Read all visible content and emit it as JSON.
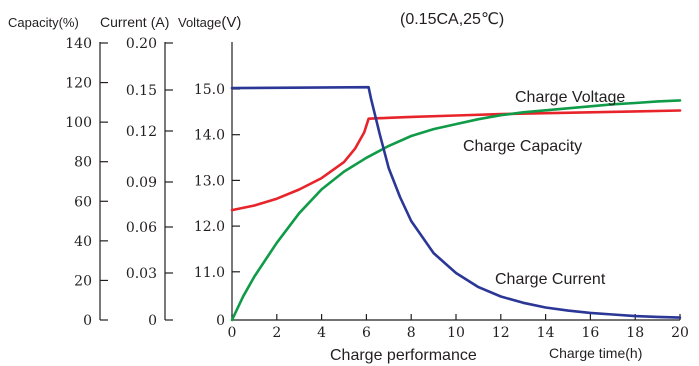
{
  "chart_data": {
    "type": "line",
    "subtitle": "(0.15CA,25℃)",
    "xlabel": "Charge time(h)",
    "caption": "Charge performance",
    "x_ticks": [
      "0",
      "2",
      "4",
      "6",
      "8",
      "10",
      "12",
      "14",
      "16",
      "18",
      "20"
    ],
    "xlim": [
      0,
      20
    ],
    "axes": {
      "capacity": {
        "label_text": "Capacity",
        "label_unit": "(%)",
        "ticks": [
          "140",
          "120",
          "100",
          "80",
          "60",
          "40",
          "20",
          "0"
        ],
        "range": [
          0,
          140
        ]
      },
      "current": {
        "label_text": "Current",
        "label_unit": "(A)",
        "ticks": [
          "0.20",
          "0.15",
          "0.12",
          "0.09",
          "0.06",
          "0.03",
          "0"
        ],
        "range": [
          0,
          0.2
        ]
      },
      "voltage": {
        "label_text": "Voltage",
        "label_unit": "(V)",
        "ticks": [
          "15.0",
          "14.0",
          "13.0",
          "12.0",
          "11.0",
          "0"
        ]
      }
    },
    "series": [
      {
        "name": "Charge Voltage",
        "color": "#e8242b",
        "axis": "voltage",
        "x": [
          0,
          1,
          2,
          3,
          4,
          5,
          5.5,
          5.9,
          6.1,
          7,
          8,
          10,
          12,
          14,
          16,
          18,
          20
        ],
        "y": [
          12.35,
          12.45,
          12.6,
          12.8,
          13.05,
          13.4,
          13.7,
          14.05,
          14.35,
          14.37,
          14.39,
          14.42,
          14.45,
          14.47,
          14.49,
          14.51,
          14.53
        ]
      },
      {
        "name": "Charge Capacity",
        "color": "#109b48",
        "axis": "capacity",
        "x": [
          0,
          0.5,
          1,
          2,
          3,
          4,
          5,
          6,
          7,
          8,
          9,
          10,
          11,
          12,
          13,
          14,
          15,
          16,
          17,
          18,
          19,
          20
        ],
        "y": [
          0,
          12,
          22,
          39,
          54,
          66,
          75,
          82,
          88,
          93,
          96.5,
          99,
          101.5,
          103.5,
          105,
          106,
          107,
          108,
          109,
          109.7,
          110.5,
          111
        ]
      },
      {
        "name": "Charge Current",
        "color": "#2b3796",
        "axis": "current",
        "x": [
          0,
          6.1,
          6.2,
          6.6,
          7,
          7.5,
          8,
          9,
          10,
          11,
          12,
          13,
          14,
          15,
          16,
          17,
          18,
          19,
          20
        ],
        "y": [
          0.152,
          0.153,
          0.144,
          0.118,
          0.098,
          0.08,
          0.064,
          0.043,
          0.03,
          0.021,
          0.015,
          0.011,
          0.008,
          0.006,
          0.0045,
          0.0035,
          0.0025,
          0.002,
          0.0015
        ]
      }
    ]
  }
}
